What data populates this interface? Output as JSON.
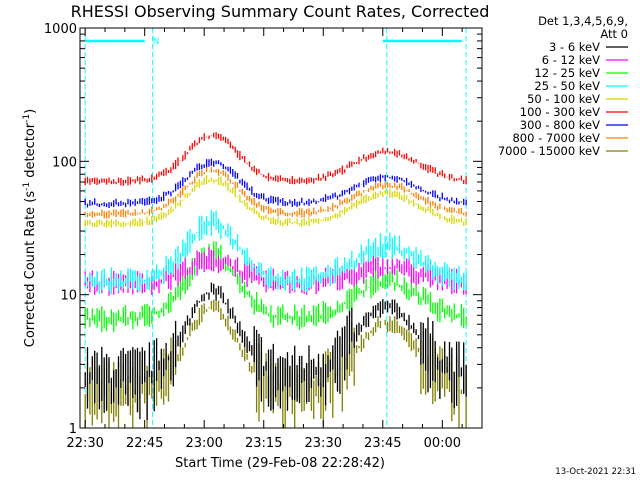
{
  "chart_data": {
    "type": "line",
    "title": "RHESSI Observing Summary Count Rates, Corrected",
    "xlabel": "Start Time (29-Feb-08 22:28:42)",
    "ylabel": "Corrected Count Rate (s⁻¹ detector⁻¹)",
    "ylabel_parts": {
      "main": "Corrected Count Rate (s",
      "sup1": "-1",
      "mid": " detector",
      "sup2": "-1",
      "end": ")"
    },
    "y_scale": "log",
    "ylim": [
      1,
      1000
    ],
    "xlim": [
      "22:28:42",
      "00:10:00"
    ],
    "x_ticks": [
      "22:30",
      "22:45",
      "23:00",
      "23:15",
      "23:30",
      "23:45",
      "00:00"
    ],
    "y_ticks": [
      "1",
      "10",
      "100",
      "1000"
    ],
    "legend": {
      "header": [
        "Det 1,3,4,5,6,9,",
        "Att 0"
      ],
      "placement": "right"
    },
    "bars": {
      "label": "N",
      "color": "#00ffff",
      "night_intervals": [
        [
          "22:30",
          "22:45"
        ],
        [
          "23:45",
          "00:05"
        ]
      ],
      "vertical_lines": [
        "22:30",
        "22:47",
        "23:46",
        "00:06"
      ]
    },
    "series": [
      {
        "name": "3 - 6 keV",
        "color": "#000000",
        "base": 2.3,
        "peak1": 10.5,
        "peak2": 8
      },
      {
        "name": "6 - 12 keV",
        "color": "#ff00ff",
        "base": 12,
        "peak1": 18,
        "peak2": 16
      },
      {
        "name": "12 - 25 keV",
        "color": "#00ff00",
        "base": 6.5,
        "peak1": 20,
        "peak2": 12.5
      },
      {
        "name": "25 - 50 keV",
        "color": "#00ffff",
        "base": 12.5,
        "peak1": 34,
        "peak2": 23
      },
      {
        "name": "50 - 100 keV",
        "color": "#d7d700",
        "base": 34,
        "peak1": 73,
        "peak2": 57
      },
      {
        "name": "100 - 300 keV",
        "color": "#ff0000",
        "base": 70,
        "peak1": 155,
        "peak2": 118
      },
      {
        "name": "300 - 800 keV",
        "color": "#0000ff",
        "base": 48,
        "peak1": 98,
        "peak2": 76
      },
      {
        "name": "800 - 7000 keV",
        "color": "#ff8000",
        "base": 40,
        "peak1": 85,
        "peak2": 66
      },
      {
        "name": "7000 - 15000 keV",
        "color": "#808000",
        "base": 1.8,
        "peak1": 8,
        "peak2": 6
      }
    ]
  },
  "footer": {
    "timestamp": "13-Oct-2021 22:31"
  }
}
